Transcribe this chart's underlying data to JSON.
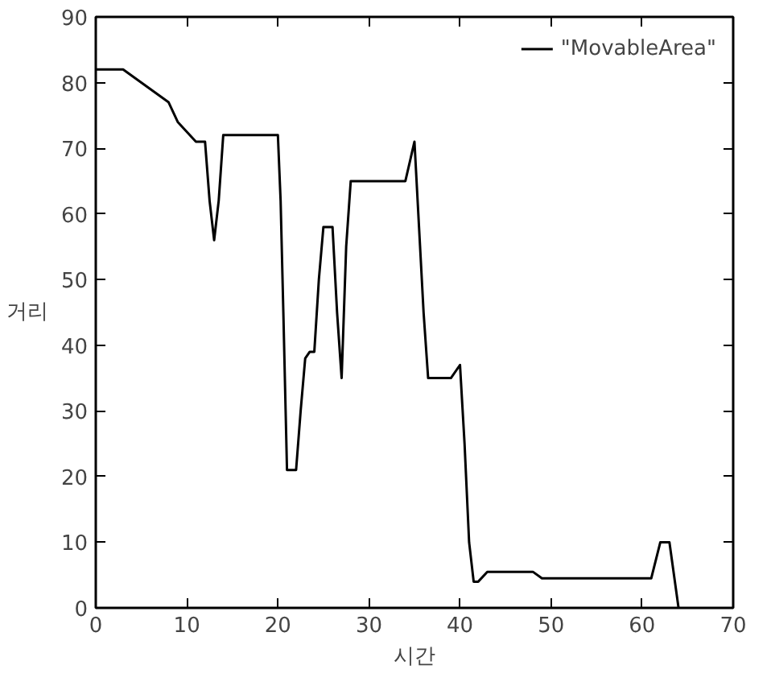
{
  "chart_data": {
    "type": "line",
    "xlabel": "시간",
    "ylabel": "거리",
    "x": [
      0,
      3,
      8,
      9,
      11,
      12,
      12.5,
      13,
      13.5,
      14,
      20,
      20.3,
      20.6,
      21,
      22,
      22.5,
      23,
      23.5,
      24,
      24.5,
      25,
      26,
      26.5,
      27,
      27.5,
      28,
      34,
      35,
      35.5,
      36,
      36.5,
      39,
      40,
      40.5,
      41,
      41.5,
      42,
      43,
      48,
      49,
      61,
      62,
      63,
      64
    ],
    "series": [
      {
        "name": "\"MovableArea\"",
        "color": "#000000",
        "values": [
          82,
          82,
          77,
          74,
          71,
          71,
          62,
          56,
          62,
          72,
          72,
          62,
          45,
          21,
          21,
          30,
          38,
          39,
          39,
          50,
          58,
          58,
          45,
          35,
          55,
          65,
          65,
          71,
          58,
          45,
          35,
          35,
          37,
          25,
          10,
          4,
          4,
          5.5,
          5.5,
          4.5,
          4.5,
          10,
          10,
          0
        ]
      }
    ],
    "xlim": [
      0,
      70
    ],
    "ylim": [
      0,
      90
    ],
    "xticks": [
      0,
      10,
      20,
      30,
      40,
      50,
      60,
      70
    ],
    "yticks": [
      0,
      10,
      20,
      30,
      40,
      50,
      60,
      70,
      80,
      90
    ],
    "grid": false,
    "legend": "top right",
    "line_style": "solid",
    "marker": "none"
  }
}
